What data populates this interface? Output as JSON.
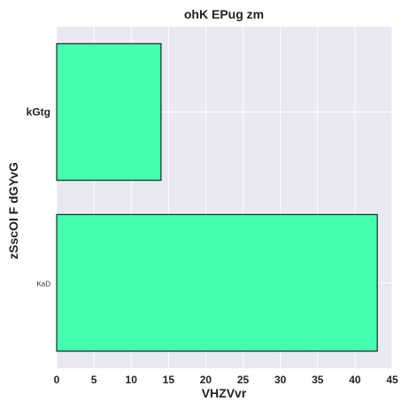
{
  "chart_data": {
    "type": "bar",
    "orientation": "horizontal",
    "title": "ohK  EPug zm",
    "xlabel": "VHZVvr",
    "ylabel": "zSscOI F dGYvG",
    "categories": [
      "kGtg",
      "KaD"
    ],
    "values": [
      14,
      43
    ],
    "xlim": [
      0,
      45
    ],
    "xticks": [
      0,
      5,
      10,
      15,
      20,
      25,
      30,
      35,
      40,
      45
    ],
    "grid": true,
    "bar_color": "#45ffb0",
    "bar_edge_color": "#000000",
    "background_color": "#e8e9f1",
    "grid_color": "#ffffff"
  }
}
